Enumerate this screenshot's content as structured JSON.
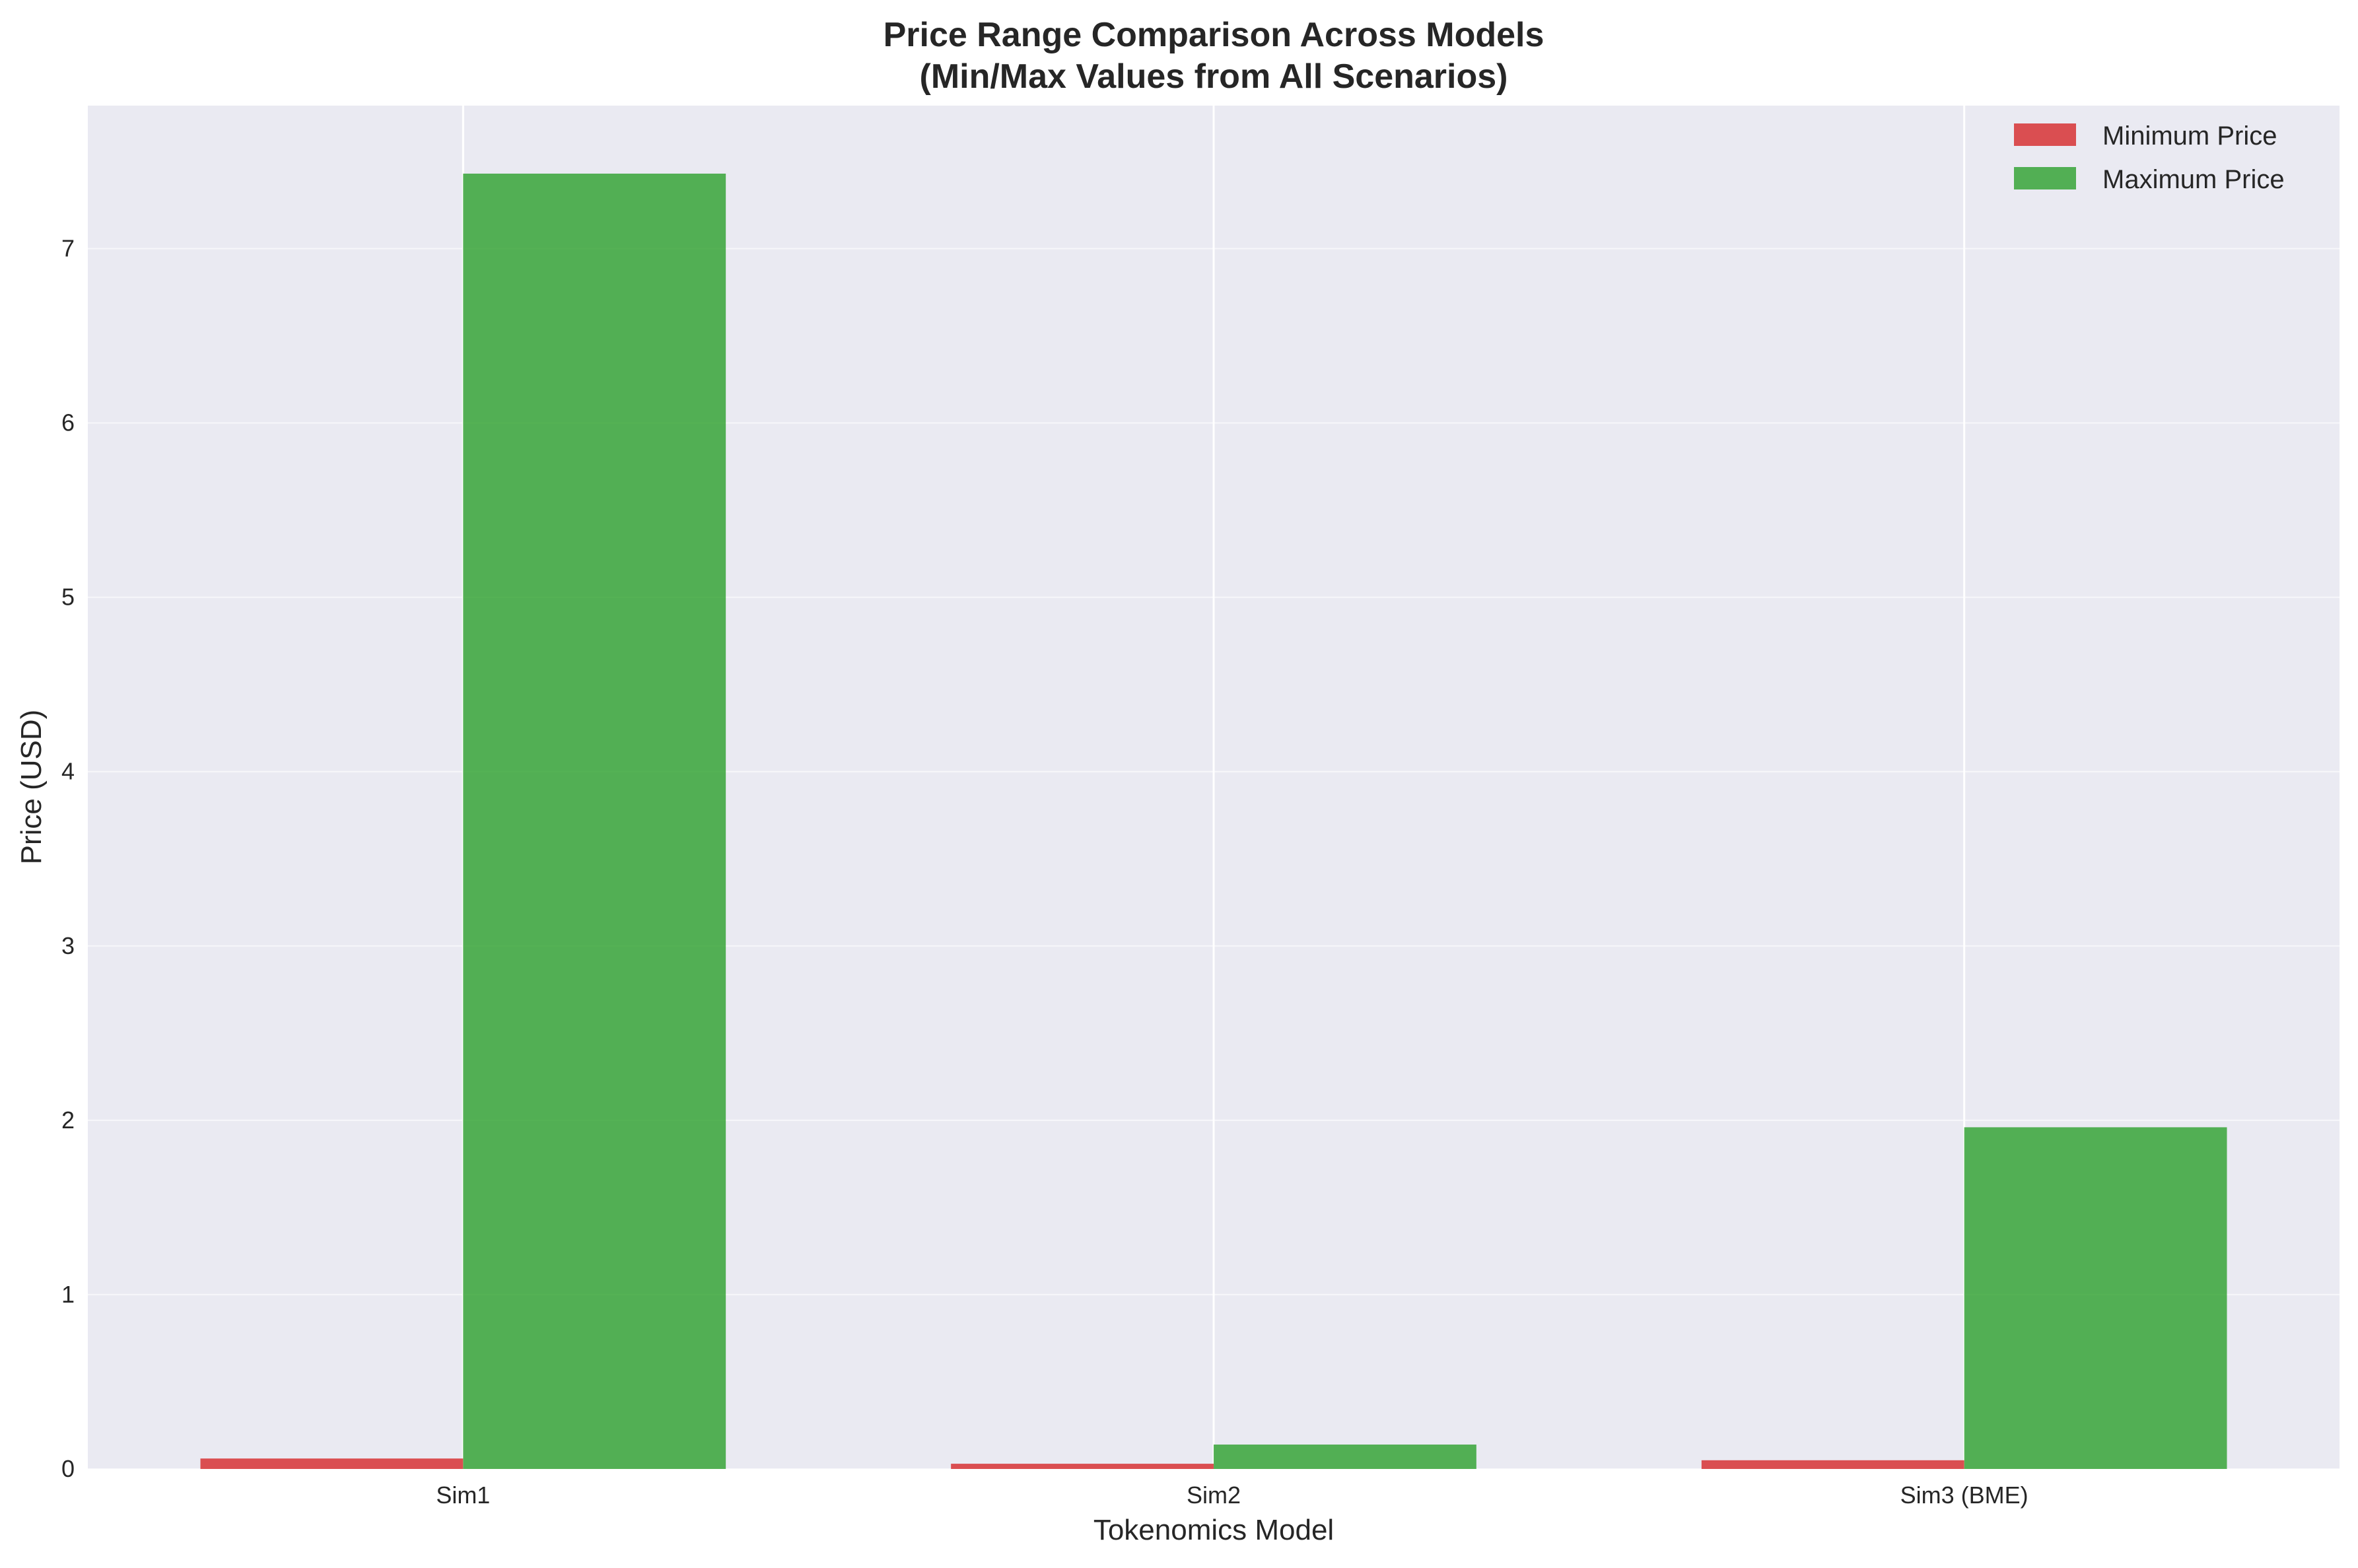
{
  "chart_data": {
    "type": "bar",
    "title": "Price Range Comparison Across Models",
    "subtitle": "(Min/Max Values from All Scenarios)",
    "xlabel": "Tokenomics Model",
    "ylabel": "Price (USD)",
    "categories": [
      "Sim1",
      "Sim2",
      "Sim3 (BME)"
    ],
    "series": [
      {
        "name": "Minimum Price",
        "color": "#d62728",
        "values": [
          0.06,
          0.03,
          0.05
        ]
      },
      {
        "name": "Maximum Price",
        "color": "#2ca02c",
        "values": [
          7.43,
          0.14,
          1.96
        ]
      }
    ],
    "ylim": [
      0,
      7.82
    ],
    "yticks": [
      "0",
      "1",
      "2",
      "3",
      "4",
      "5",
      "6",
      "7"
    ],
    "grid": true,
    "legend_position": "top-right",
    "background_color": "#eaeaf2"
  }
}
